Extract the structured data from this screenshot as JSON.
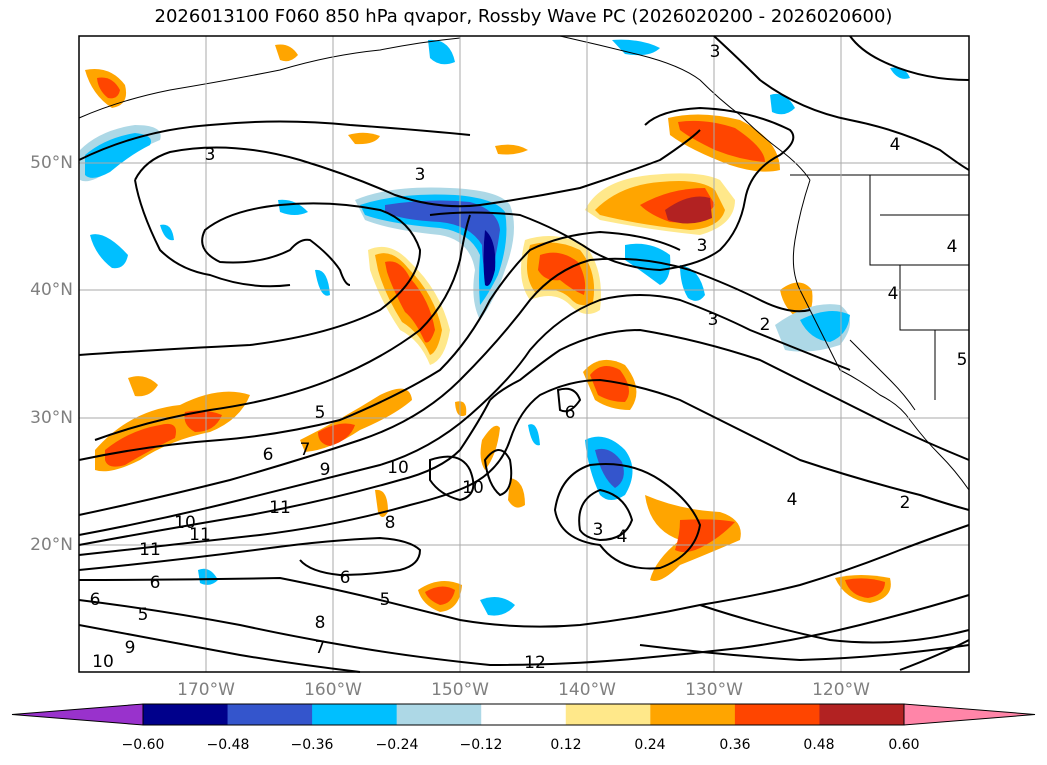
{
  "title": "2026013100 F060 850 hPa qvapor, Rossby Wave PC (2026020200 - 2026020600)",
  "map": {
    "projection": "cylindrical",
    "lon_range": [
      -180,
      -110
    ],
    "lat_range": [
      10,
      60
    ],
    "grid": true,
    "lat_labels": [
      "20°N",
      "30°N",
      "40°N",
      "50°N"
    ],
    "lon_labels": [
      "170°W",
      "160°W",
      "150°W",
      "140°W",
      "130°W",
      "120°W"
    ],
    "contour_color": "#000000",
    "contour_labels": [
      "3",
      "3",
      "3",
      "3",
      "3",
      "2",
      "2",
      "4",
      "4",
      "4",
      "4",
      "5",
      "5",
      "5",
      "5",
      "6",
      "6",
      "6",
      "6",
      "7",
      "7",
      "8",
      "8",
      "9",
      "9",
      "10",
      "10",
      "10",
      "10",
      "11",
      "11",
      "11",
      "12",
      "3",
      "4",
      "6"
    ]
  },
  "colorbar": {
    "ticks": [
      "−0.60",
      "−0.48",
      "−0.36",
      "−0.24",
      "−0.12",
      "0.12",
      "0.24",
      "0.36",
      "0.48",
      "0.60"
    ],
    "colors": [
      "#9932cc",
      "#00008b",
      "#3455cc",
      "#00bfff",
      "#add8e6",
      "#ffffff",
      "#ffe88a",
      "#ffa500",
      "#ff4500",
      "#b22222",
      "#ff85a8"
    ]
  }
}
